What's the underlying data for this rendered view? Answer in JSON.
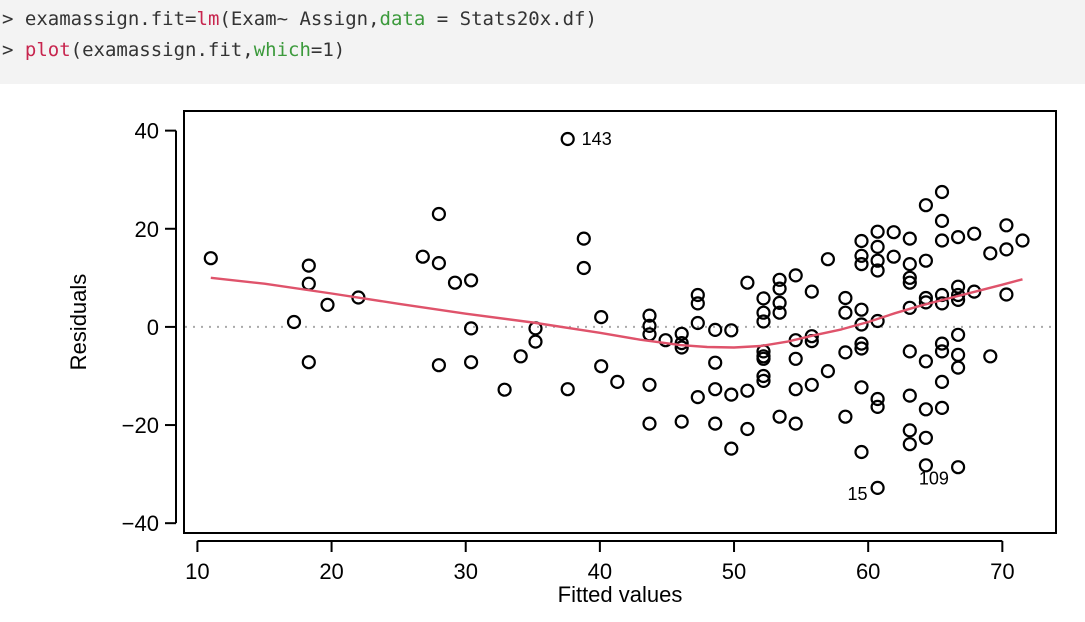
{
  "console": {
    "line1": {
      "prompt": "> ",
      "obj": "examassign.fit",
      "eq": "=",
      "fn": "lm",
      "args": "(Exam~ Assign,",
      "arg_name": "data",
      "rest": " = Stats20x.df)"
    },
    "line2": {
      "prompt": "> ",
      "fn": "plot",
      "args": "(examassign.fit,",
      "arg_name": "which",
      "eq": "=",
      "arg_val": "1",
      "close": ")"
    }
  },
  "colors": {
    "console_bg": "#f3f3f3",
    "function": "#c7254e",
    "argument": "#3c9a3c",
    "smooth_line": "#df536b",
    "reference_line": "#aaaaaa"
  },
  "chart_data": {
    "type": "scatter",
    "xlabel": "Fitted values",
    "ylabel": "Residuals",
    "xlim": [
      9,
      74
    ],
    "ylim": [
      -42,
      44
    ],
    "x_ticks": [
      10,
      20,
      30,
      40,
      50,
      60,
      70
    ],
    "y_ticks": [
      -40,
      -20,
      0,
      20,
      40
    ],
    "x_tick_labels": [
      "10",
      "20",
      "30",
      "40",
      "50",
      "60",
      "70"
    ],
    "y_tick_labels": [
      "−40",
      "−20",
      "0",
      "20",
      "40"
    ],
    "reference_line_y": 0,
    "points": [
      [
        11.0,
        14.0
      ],
      [
        17.2,
        1.0
      ],
      [
        18.3,
        12.5
      ],
      [
        18.3,
        8.8
      ],
      [
        18.3,
        -7.2
      ],
      [
        19.7,
        4.5
      ],
      [
        22.0,
        6.0
      ],
      [
        26.8,
        14.3
      ],
      [
        28.0,
        23.0
      ],
      [
        28.0,
        13.0
      ],
      [
        28.0,
        -7.8
      ],
      [
        29.2,
        9.0
      ],
      [
        30.4,
        9.5
      ],
      [
        30.4,
        -0.3
      ],
      [
        30.4,
        -7.2
      ],
      [
        32.9,
        -12.8
      ],
      [
        34.1,
        -6.0
      ],
      [
        35.2,
        -0.3
      ],
      [
        35.2,
        -3.0
      ],
      [
        37.6,
        38.3
      ],
      [
        37.6,
        -12.7
      ],
      [
        38.8,
        18.0
      ],
      [
        38.8,
        12.0
      ],
      [
        40.1,
        2.0
      ],
      [
        40.1,
        -8.0
      ],
      [
        41.3,
        -11.2
      ],
      [
        43.7,
        2.3
      ],
      [
        43.7,
        0.2
      ],
      [
        43.7,
        -1.5
      ],
      [
        43.7,
        -11.8
      ],
      [
        43.7,
        -19.7
      ],
      [
        44.9,
        -2.7
      ],
      [
        46.1,
        -1.4
      ],
      [
        46.1,
        -3.3
      ],
      [
        46.1,
        -4.2
      ],
      [
        46.1,
        -19.3
      ],
      [
        47.3,
        6.5
      ],
      [
        47.3,
        4.8
      ],
      [
        47.3,
        0.8
      ],
      [
        47.3,
        -14.3
      ],
      [
        48.6,
        -0.6
      ],
      [
        48.6,
        -7.3
      ],
      [
        48.6,
        -12.7
      ],
      [
        48.6,
        -19.7
      ],
      [
        49.8,
        -0.7
      ],
      [
        49.8,
        -13.8
      ],
      [
        49.8,
        -24.8
      ],
      [
        51.0,
        9.0
      ],
      [
        51.0,
        -13.0
      ],
      [
        51.0,
        -20.8
      ],
      [
        52.2,
        5.8
      ],
      [
        52.2,
        2.9
      ],
      [
        52.2,
        1.1
      ],
      [
        52.2,
        -5.0
      ],
      [
        52.2,
        -6.0
      ],
      [
        52.2,
        -6.5
      ],
      [
        52.2,
        -10.0
      ],
      [
        52.2,
        -11.0
      ],
      [
        53.4,
        9.6
      ],
      [
        53.4,
        7.8
      ],
      [
        53.4,
        4.9
      ],
      [
        53.4,
        2.9
      ],
      [
        53.4,
        -18.3
      ],
      [
        54.6,
        10.5
      ],
      [
        54.6,
        -2.7
      ],
      [
        54.6,
        -6.5
      ],
      [
        54.6,
        -12.7
      ],
      [
        54.6,
        -19.7
      ],
      [
        55.8,
        7.2
      ],
      [
        55.8,
        -1.9
      ],
      [
        55.8,
        -2.9
      ],
      [
        55.8,
        -11.8
      ],
      [
        57.0,
        13.8
      ],
      [
        57.0,
        -9.0
      ],
      [
        58.3,
        5.9
      ],
      [
        58.3,
        2.9
      ],
      [
        58.3,
        -5.2
      ],
      [
        58.3,
        -18.3
      ],
      [
        59.5,
        17.5
      ],
      [
        59.5,
        14.5
      ],
      [
        59.5,
        12.8
      ],
      [
        59.5,
        3.5
      ],
      [
        59.5,
        0.5
      ],
      [
        59.5,
        -3.4
      ],
      [
        59.5,
        -4.4
      ],
      [
        59.5,
        -12.3
      ],
      [
        59.5,
        -25.5
      ],
      [
        60.7,
        19.4
      ],
      [
        60.7,
        16.3
      ],
      [
        60.7,
        13.5
      ],
      [
        60.7,
        11.5
      ],
      [
        60.7,
        1.2
      ],
      [
        60.7,
        -14.7
      ],
      [
        60.7,
        -16.3
      ],
      [
        60.7,
        -32.8
      ],
      [
        61.9,
        19.3
      ],
      [
        61.9,
        14.3
      ],
      [
        63.1,
        18.0
      ],
      [
        63.1,
        12.8
      ],
      [
        63.1,
        10.0
      ],
      [
        63.1,
        9.0
      ],
      [
        63.1,
        3.9
      ],
      [
        63.1,
        -5.0
      ],
      [
        63.1,
        -14.0
      ],
      [
        63.1,
        -21.1
      ],
      [
        63.1,
        -23.9
      ],
      [
        64.3,
        24.8
      ],
      [
        64.3,
        13.5
      ],
      [
        64.3,
        5.9
      ],
      [
        64.3,
        5.0
      ],
      [
        64.3,
        -7.0
      ],
      [
        64.3,
        -16.8
      ],
      [
        64.3,
        -22.6
      ],
      [
        64.3,
        -28.2
      ],
      [
        65.5,
        27.5
      ],
      [
        65.5,
        21.6
      ],
      [
        65.5,
        17.6
      ],
      [
        65.5,
        6.5
      ],
      [
        65.5,
        4.8
      ],
      [
        65.5,
        -3.4
      ],
      [
        65.5,
        -5.0
      ],
      [
        65.5,
        -11.2
      ],
      [
        65.5,
        -16.5
      ],
      [
        66.7,
        18.3
      ],
      [
        66.7,
        8.2
      ],
      [
        66.7,
        6.5
      ],
      [
        66.7,
        5.5
      ],
      [
        66.7,
        -1.6
      ],
      [
        66.7,
        -5.7
      ],
      [
        66.7,
        -8.3
      ],
      [
        66.7,
        -28.6
      ],
      [
        67.9,
        19.0
      ],
      [
        67.9,
        7.2
      ],
      [
        69.1,
        15.0
      ],
      [
        69.1,
        -6.0
      ],
      [
        70.3,
        20.7
      ],
      [
        70.3,
        15.8
      ],
      [
        70.3,
        6.6
      ],
      [
        71.5,
        17.6
      ]
    ],
    "point_labels": [
      {
        "text": "143",
        "x": 37.6,
        "y": 38.3
      },
      {
        "text": "15",
        "x": 60.7,
        "y": -32.8
      },
      {
        "text": "109",
        "x": 64.3,
        "y": -28.2
      }
    ],
    "smooth_line": {
      "x": [
        11,
        15,
        20,
        25,
        30,
        35,
        40,
        43,
        46,
        48,
        50,
        52,
        54,
        56,
        58,
        60,
        62,
        64,
        66,
        68,
        70,
        71.5
      ],
      "y": [
        10.0,
        8.8,
        6.8,
        4.7,
        2.7,
        0.9,
        -1.2,
        -2.6,
        -3.7,
        -4.1,
        -4.2,
        -3.9,
        -3.0,
        -1.7,
        -0.5,
        1.0,
        2.8,
        4.4,
        5.8,
        7.2,
        8.6,
        9.7
      ]
    }
  }
}
